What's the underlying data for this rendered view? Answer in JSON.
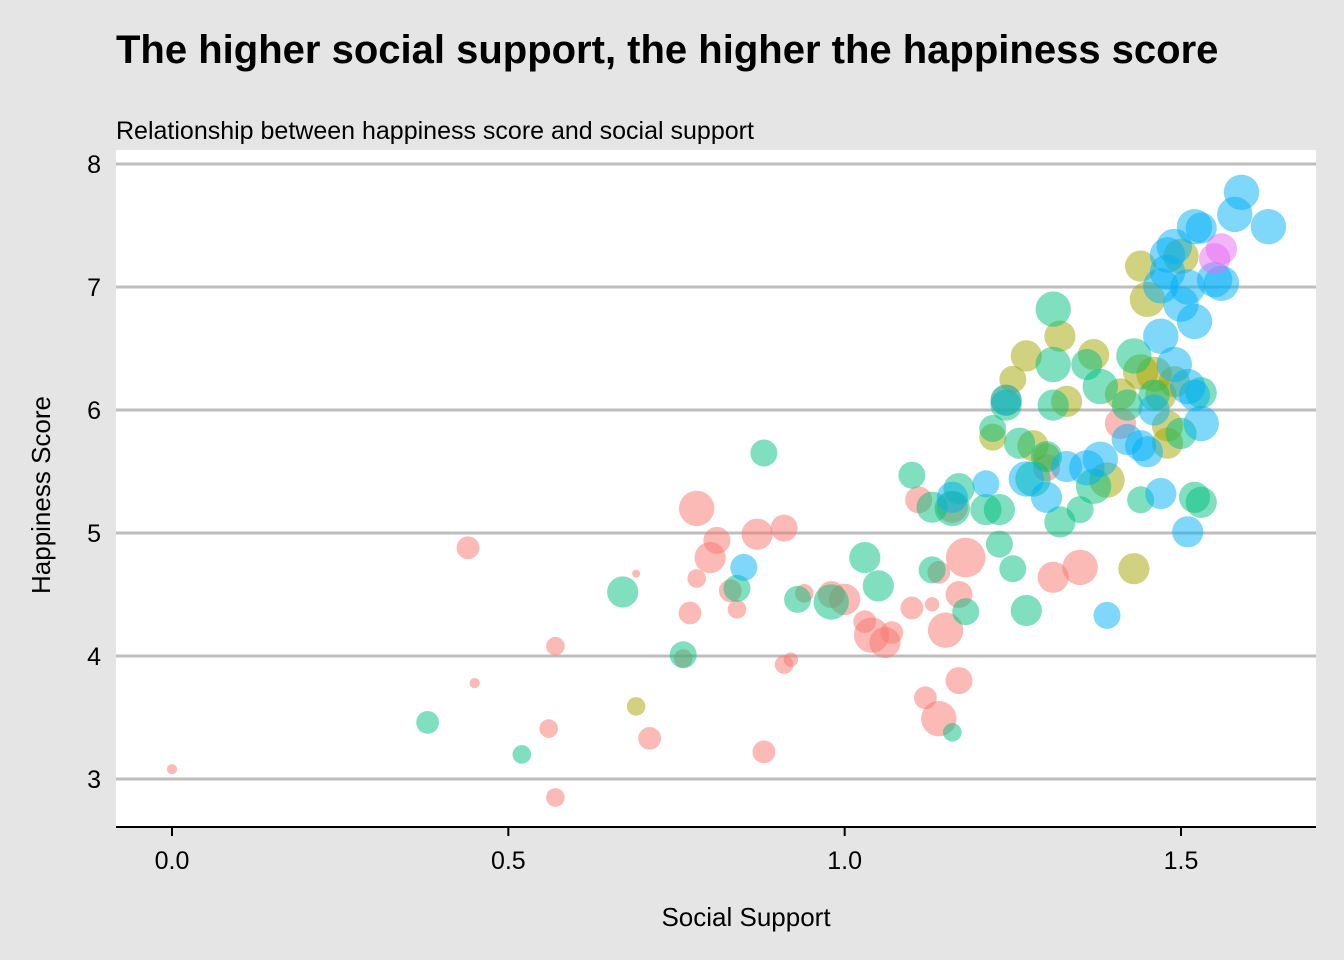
{
  "title": "The higher social support, the higher the happiness score",
  "subtitle": "Relationship between happiness score and social support",
  "colors": {
    "background": "#e5e5e5",
    "panel": "#ffffff",
    "gridline": "#bebebe",
    "group_red": "#F8766D",
    "group_olive": "#A3A500",
    "group_green": "#00BF7D",
    "group_blue": "#00B0F6",
    "group_magenta": "#E76BF3"
  },
  "chart_data": {
    "type": "scatter",
    "title": "The higher social support, the higher the happiness score",
    "subtitle": "Relationship between happiness score and social support",
    "xlabel": "Social Support",
    "ylabel": "Happiness Score",
    "xlim": [
      -0.08,
      1.7
    ],
    "ylim": [
      2.6,
      8.0
    ],
    "x_ticks": [
      0.0,
      0.5,
      1.0,
      1.5
    ],
    "x_tick_labels": [
      "0.0",
      "0.5",
      "1.0",
      "1.5"
    ],
    "y_ticks": [
      3,
      4,
      5,
      6,
      7,
      8
    ],
    "y_tick_labels": [
      "3",
      "4",
      "5",
      "6",
      "7",
      "8"
    ],
    "grid": "horizontal major gridlines",
    "legend": "none",
    "point_alpha": 0.5,
    "point_size_note": "bubble size varies; size value given per point (relative scale)",
    "series": [
      {
        "group": "red",
        "color": "#F8766D",
        "points": [
          [
            0.0,
            3.08,
            1
          ],
          [
            0.44,
            4.88,
            4
          ],
          [
            0.45,
            3.78,
            1
          ],
          [
            0.56,
            3.41,
            3
          ],
          [
            0.57,
            4.08,
            3
          ],
          [
            0.57,
            2.85,
            3
          ],
          [
            0.69,
            4.67,
            0.5
          ],
          [
            0.71,
            3.33,
            4
          ],
          [
            0.76,
            3.98,
            3
          ],
          [
            0.77,
            4.35,
            4
          ],
          [
            0.78,
            4.63,
            3
          ],
          [
            0.78,
            5.2,
            7
          ],
          [
            0.8,
            4.8,
            6
          ],
          [
            0.81,
            4.94,
            5
          ],
          [
            0.83,
            4.53,
            4
          ],
          [
            0.84,
            4.38,
            3
          ],
          [
            0.87,
            4.99,
            6
          ],
          [
            0.88,
            3.22,
            4
          ],
          [
            0.91,
            5.04,
            5
          ],
          [
            0.91,
            3.93,
            3
          ],
          [
            0.92,
            3.97,
            2
          ],
          [
            0.94,
            4.51,
            3
          ],
          [
            0.98,
            4.5,
            5
          ],
          [
            1.0,
            4.46,
            6
          ],
          [
            1.03,
            4.28,
            4
          ],
          [
            1.04,
            4.17,
            7
          ],
          [
            1.06,
            4.11,
            6
          ],
          [
            1.07,
            4.19,
            4
          ],
          [
            1.1,
            4.39,
            4
          ],
          [
            1.11,
            5.27,
            5
          ],
          [
            1.12,
            3.66,
            4
          ],
          [
            1.13,
            4.42,
            2
          ],
          [
            1.14,
            4.68,
            4
          ],
          [
            1.14,
            3.49,
            7
          ],
          [
            1.15,
            4.21,
            7
          ],
          [
            1.16,
            5.21,
            6
          ],
          [
            1.17,
            4.5,
            5
          ],
          [
            1.17,
            3.8,
            5
          ],
          [
            1.18,
            4.8,
            8
          ],
          [
            1.3,
            5.53,
            5
          ],
          [
            1.31,
            4.64,
            6
          ],
          [
            1.35,
            4.72,
            7
          ],
          [
            1.41,
            5.89,
            6
          ]
        ]
      },
      {
        "group": "olive",
        "color": "#A3A500",
        "points": [
          [
            0.69,
            3.59,
            3
          ],
          [
            1.22,
            5.78,
            5
          ],
          [
            1.24,
            6.08,
            6
          ],
          [
            1.25,
            6.25,
            5
          ],
          [
            1.27,
            6.44,
            6
          ],
          [
            1.28,
            5.71,
            6
          ],
          [
            1.3,
            5.62,
            5
          ],
          [
            1.32,
            6.6,
            6
          ],
          [
            1.33,
            6.07,
            6
          ],
          [
            1.37,
            6.45,
            6
          ],
          [
            1.39,
            5.43,
            7
          ],
          [
            1.41,
            6.13,
            6
          ],
          [
            1.43,
            4.71,
            6
          ],
          [
            1.44,
            6.31,
            7
          ],
          [
            1.44,
            7.17,
            6
          ],
          [
            1.45,
            6.9,
            7
          ],
          [
            1.46,
            6.29,
            7
          ],
          [
            1.47,
            6.12,
            6
          ],
          [
            1.48,
            5.73,
            6
          ],
          [
            1.48,
            5.87,
            6
          ],
          [
            1.49,
            6.23,
            6
          ],
          [
            1.5,
            7.25,
            7
          ]
        ]
      },
      {
        "group": "green",
        "color": "#00BF7D",
        "points": [
          [
            0.38,
            3.46,
            4
          ],
          [
            0.52,
            3.2,
            3
          ],
          [
            0.67,
            4.52,
            6
          ],
          [
            0.76,
            4.01,
            5
          ],
          [
            0.84,
            4.55,
            5
          ],
          [
            0.88,
            5.65,
            5
          ],
          [
            0.93,
            4.46,
            5
          ],
          [
            0.98,
            4.44,
            7
          ],
          [
            1.03,
            4.8,
            6
          ],
          [
            1.05,
            4.57,
            6
          ],
          [
            1.1,
            5.47,
            5
          ],
          [
            1.13,
            4.7,
            5
          ],
          [
            1.13,
            5.21,
            6
          ],
          [
            1.16,
            3.38,
            3
          ],
          [
            1.16,
            5.2,
            7
          ],
          [
            1.17,
            5.36,
            6
          ],
          [
            1.18,
            4.36,
            5
          ],
          [
            1.21,
            5.19,
            6
          ],
          [
            1.22,
            5.85,
            5
          ],
          [
            1.23,
            5.19,
            6
          ],
          [
            1.23,
            4.91,
            5
          ],
          [
            1.24,
            6.04,
            6
          ],
          [
            1.25,
            4.71,
            5
          ],
          [
            1.26,
            5.73,
            6
          ],
          [
            1.27,
            4.37,
            6
          ],
          [
            1.28,
            5.44,
            7
          ],
          [
            1.3,
            5.62,
            6
          ],
          [
            1.31,
            6.04,
            6
          ],
          [
            1.31,
            6.37,
            7
          ],
          [
            1.31,
            6.82,
            7
          ],
          [
            1.32,
            5.09,
            6
          ],
          [
            1.35,
            5.19,
            5
          ],
          [
            1.36,
            6.37,
            6
          ],
          [
            1.37,
            5.38,
            7
          ],
          [
            1.38,
            6.19,
            7
          ],
          [
            1.42,
            6.04,
            6
          ],
          [
            1.43,
            6.44,
            7
          ],
          [
            1.44,
            5.27,
            5
          ],
          [
            1.46,
            6.12,
            6
          ],
          [
            1.5,
            5.81,
            6
          ],
          [
            1.52,
            5.29,
            6
          ],
          [
            1.53,
            5.25,
            6
          ],
          [
            1.53,
            6.14,
            6
          ]
        ]
      },
      {
        "group": "blue",
        "color": "#00B0F6",
        "points": [
          [
            0.85,
            4.72,
            5
          ],
          [
            1.16,
            5.29,
            6
          ],
          [
            1.21,
            5.4,
            5
          ],
          [
            1.24,
            6.08,
            6
          ],
          [
            1.27,
            5.44,
            7
          ],
          [
            1.3,
            5.29,
            6
          ],
          [
            1.33,
            5.54,
            6
          ],
          [
            1.36,
            5.53,
            7
          ],
          [
            1.38,
            5.6,
            7
          ],
          [
            1.39,
            4.33,
            5
          ],
          [
            1.42,
            5.76,
            6
          ],
          [
            1.44,
            5.71,
            6
          ],
          [
            1.45,
            5.66,
            6
          ],
          [
            1.46,
            6.0,
            6
          ],
          [
            1.47,
            5.32,
            6
          ],
          [
            1.47,
            6.6,
            7
          ],
          [
            1.47,
            7.01,
            7
          ],
          [
            1.48,
            7.12,
            7
          ],
          [
            1.48,
            7.26,
            7
          ],
          [
            1.49,
            6.37,
            7
          ],
          [
            1.49,
            7.33,
            7
          ],
          [
            1.5,
            6.86,
            7
          ],
          [
            1.51,
            6.19,
            7
          ],
          [
            1.51,
            7.0,
            7
          ],
          [
            1.51,
            5.01,
            6
          ],
          [
            1.52,
            6.12,
            6
          ],
          [
            1.52,
            6.72,
            7
          ],
          [
            1.52,
            7.49,
            7
          ],
          [
            1.53,
            7.48,
            6
          ],
          [
            1.53,
            5.89,
            7
          ],
          [
            1.55,
            7.06,
            7
          ],
          [
            1.56,
            7.03,
            7
          ],
          [
            1.58,
            7.59,
            7
          ],
          [
            1.59,
            7.77,
            7
          ],
          [
            1.63,
            7.49,
            7
          ]
        ]
      },
      {
        "group": "magenta",
        "color": "#E76BF3",
        "points": [
          [
            1.55,
            7.23,
            6
          ],
          [
            1.56,
            7.31,
            6
          ]
        ]
      }
    ]
  }
}
